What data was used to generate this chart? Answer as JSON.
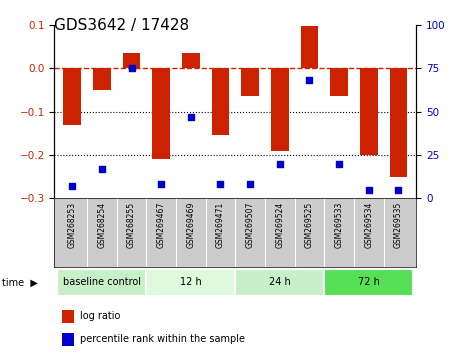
{
  "title": "GDS3642 / 17428",
  "samples": [
    "GSM268253",
    "GSM268254",
    "GSM268255",
    "GSM269467",
    "GSM269469",
    "GSM269471",
    "GSM269507",
    "GSM269524",
    "GSM269525",
    "GSM269533",
    "GSM269534",
    "GSM269535"
  ],
  "log_ratio": [
    -0.13,
    -0.05,
    0.035,
    -0.21,
    0.035,
    -0.155,
    -0.065,
    -0.19,
    0.097,
    -0.065,
    -0.2,
    -0.25
  ],
  "percentile_rank": [
    7,
    17,
    75,
    8,
    47,
    8,
    8,
    20,
    68,
    20,
    5,
    5
  ],
  "group_labels": [
    "baseline control",
    "12 h",
    "24 h",
    "72 h"
  ],
  "group_starts": [
    0,
    3,
    6,
    9
  ],
  "group_ends": [
    3,
    6,
    9,
    12
  ],
  "group_colors": [
    "#c8f0c8",
    "#ddfadd",
    "#c8f0c8",
    "#55e055"
  ],
  "ylim_left": [
    -0.3,
    0.1
  ],
  "ylim_right": [
    0,
    100
  ],
  "bar_color": "#cc2200",
  "dot_color": "#0000cc",
  "zero_line_color": "#cc2200",
  "title_fontsize": 11
}
